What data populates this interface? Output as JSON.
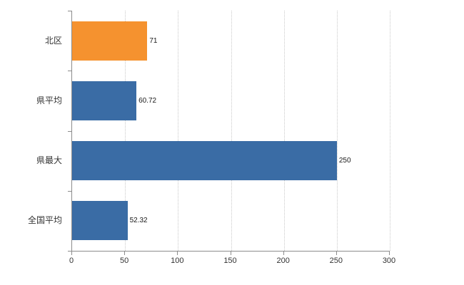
{
  "chart_data": {
    "type": "bar",
    "orientation": "horizontal",
    "title": "",
    "xlabel": "",
    "ylabel": "",
    "categories": [
      "北区",
      "県平均",
      "県最大",
      "全国平均"
    ],
    "values": [
      71,
      60.72,
      250,
      52.32
    ],
    "value_labels": [
      "71",
      "60.72",
      "250",
      "52.32"
    ],
    "bar_colors": [
      "#f5922f",
      "#3a6ca5",
      "#3a6ca5",
      "#3a6ca5"
    ],
    "xlim": [
      0,
      300
    ],
    "x_ticks": [
      "0",
      "50",
      "100",
      "150",
      "200",
      "250",
      "300"
    ],
    "grid": "vertical-dotted",
    "legend": "none"
  },
  "colors": {
    "highlight_bar": "#f5922f",
    "default_bar": "#3a6ca5",
    "axis": "#8c8c8c",
    "gridline": "#c9c9c9",
    "background": "#ffffff"
  }
}
